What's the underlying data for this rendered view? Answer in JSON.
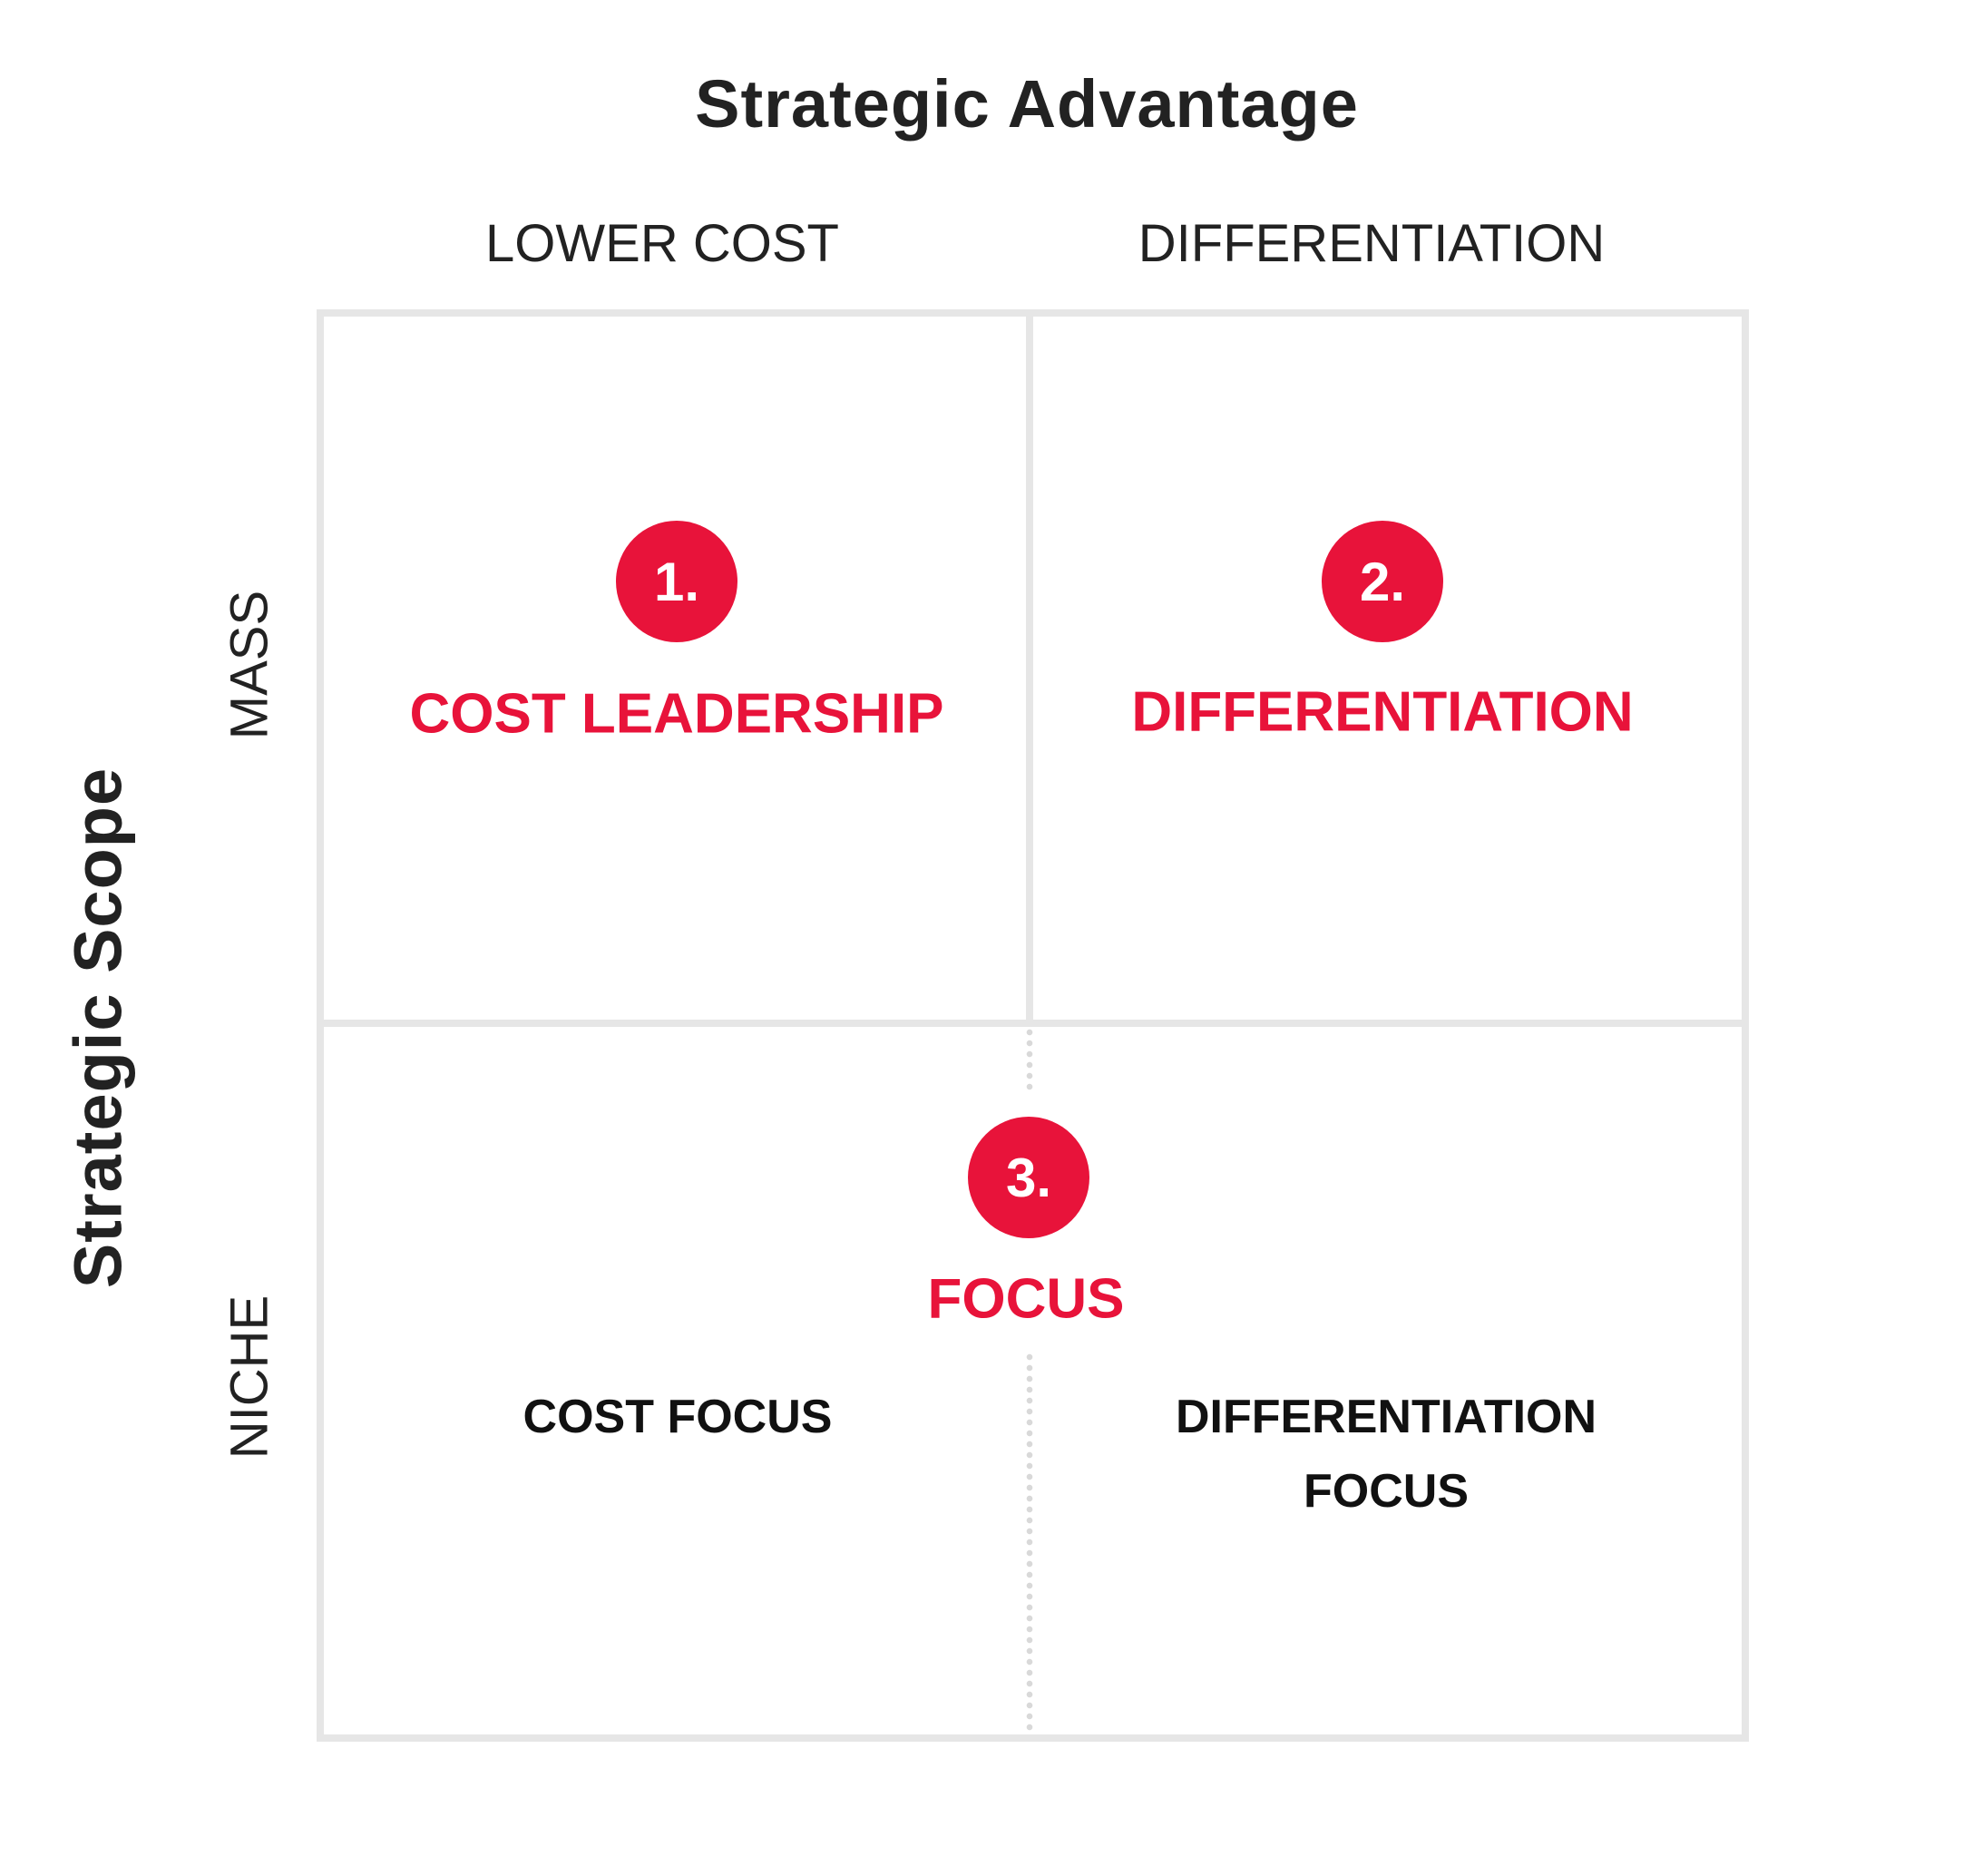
{
  "axes": {
    "x_title": "Strategic Advantage",
    "y_title": "Strategic Scope",
    "columns": [
      "LOWER COST",
      "DIFFERENTIATION"
    ],
    "rows": [
      "MASS",
      "NICHE"
    ]
  },
  "strategies": [
    {
      "number": "1.",
      "name": "COST LEADERSHIP"
    },
    {
      "number": "2.",
      "name": "DIFFERENTIATION"
    },
    {
      "number": "3.",
      "name": "FOCUS"
    }
  ],
  "focus_subtypes": {
    "cost": "COST FOCUS",
    "differentiation_line1": "DIFFERENTIATION",
    "differentiation_line2": "FOCUS"
  },
  "colors": {
    "accent": "#e8133a",
    "grid": "#e6e6e6",
    "text": "#222222"
  }
}
